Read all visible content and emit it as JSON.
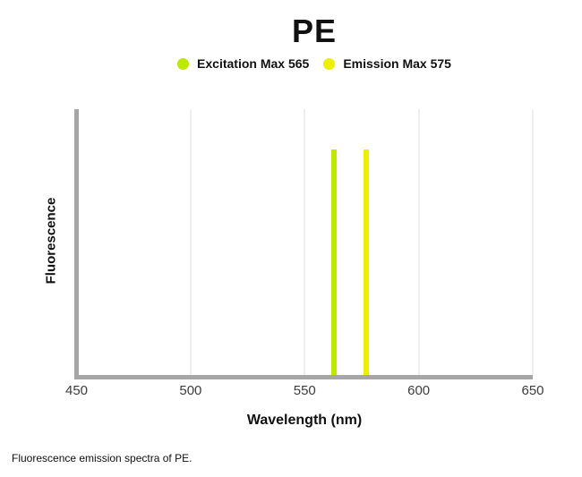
{
  "title": "PE",
  "legend": {
    "items": [
      {
        "label": "Excitation Max 565",
        "color": "#BDE800"
      },
      {
        "label": "Emission Max 575",
        "color": "#EDF000"
      }
    ]
  },
  "axes": {
    "x_label": "Wavelength (nm)",
    "y_label": "Fluorescence"
  },
  "caption": "Fluorescence emission spectra of PE.",
  "chart_data": {
    "type": "bar",
    "title": "PE",
    "xlabel": "Wavelength (nm)",
    "ylabel": "Fluorescence",
    "xlim": [
      450,
      650
    ],
    "x_ticks": [
      450,
      500,
      550,
      600,
      650
    ],
    "grid": "vertical gridlines at 500, 550, 600, 650; none at 450",
    "gridline_values": [
      500,
      550,
      600,
      650
    ],
    "legend_position": "top-center",
    "axis_color": "#A6A6A6",
    "grid_color": "#EFEFEF",
    "series": [
      {
        "name": "Excitation Max 565",
        "excitation_max_nm": 565,
        "rendered_line_nm": 563,
        "peak_height_fraction": 0.85,
        "color": "#BDE800"
      },
      {
        "name": "Emission Max 575",
        "emission_max_nm": 575,
        "rendered_line_nm": 577,
        "peak_height_fraction": 0.85,
        "color": "#EDF000"
      }
    ]
  }
}
